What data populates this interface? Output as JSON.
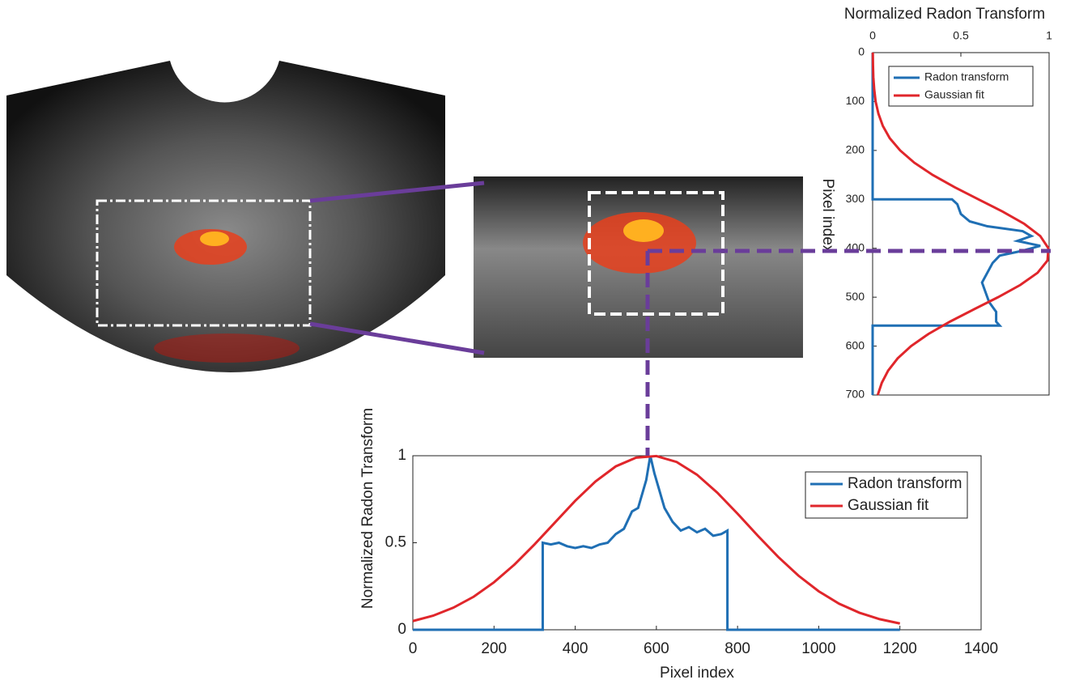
{
  "chart_data": [
    {
      "type": "line",
      "orientation": "vertical",
      "x_label": "Pixel index",
      "y_label": "Normalized Radon Transform",
      "xlim": [
        0,
        700
      ],
      "xticks": [
        0,
        100,
        200,
        300,
        400,
        500,
        600,
        700
      ],
      "ylim": [
        0,
        1
      ],
      "yticks": [
        0,
        0.5,
        1
      ],
      "legend": "northeast",
      "series": [
        {
          "name": "Radon transform",
          "color": "#1f6fb4",
          "x": [
            0,
            300,
            300,
            310,
            330,
            345,
            355,
            365,
            375,
            385,
            395,
            405,
            415,
            430,
            450,
            470,
            490,
            510,
            530,
            550,
            558,
            558,
            700
          ],
          "values": [
            0,
            0,
            0.45,
            0.48,
            0.5,
            0.55,
            0.65,
            0.85,
            0.9,
            0.82,
            0.95,
            0.85,
            0.72,
            0.68,
            0.65,
            0.62,
            0.64,
            0.66,
            0.7,
            0.7,
            0.72,
            0,
            0
          ]
        },
        {
          "name": "Gaussian fit",
          "color": "#e0262b",
          "x": [
            0,
            25,
            50,
            75,
            100,
            125,
            150,
            175,
            200,
            225,
            250,
            275,
            300,
            325,
            350,
            375,
            400,
            425,
            450,
            475,
            500,
            525,
            550,
            575,
            600,
            625,
            650,
            675,
            700
          ],
          "values": [
            0.001,
            0.002,
            0.004,
            0.009,
            0.017,
            0.033,
            0.058,
            0.097,
            0.156,
            0.236,
            0.34,
            0.464,
            0.6,
            0.737,
            0.859,
            0.95,
            0.996,
            0.991,
            0.935,
            0.837,
            0.711,
            0.573,
            0.438,
            0.317,
            0.218,
            0.142,
            0.088,
            0.052,
            0.029
          ]
        }
      ]
    },
    {
      "type": "line",
      "orientation": "horizontal",
      "x_label": "Pixel index",
      "y_label": "Normalized Radon Transform",
      "xlim": [
        0,
        1400
      ],
      "xticks": [
        0,
        200,
        400,
        600,
        800,
        1000,
        1200,
        1400
      ],
      "ylim": [
        0,
        1
      ],
      "yticks": [
        0,
        0.5,
        1
      ],
      "legend": "northeast",
      "series": [
        {
          "name": "Radon transform",
          "color": "#1f6fb4",
          "x": [
            0,
            320,
            320,
            340,
            360,
            380,
            400,
            420,
            440,
            460,
            480,
            500,
            520,
            540,
            555,
            565,
            575,
            585,
            595,
            605,
            620,
            640,
            660,
            680,
            700,
            720,
            740,
            760,
            775,
            775,
            1200
          ],
          "values": [
            0,
            0,
            0.5,
            0.49,
            0.5,
            0.48,
            0.47,
            0.48,
            0.47,
            0.49,
            0.5,
            0.55,
            0.58,
            0.68,
            0.7,
            0.78,
            0.86,
            1.0,
            0.9,
            0.82,
            0.7,
            0.62,
            0.57,
            0.59,
            0.56,
            0.58,
            0.54,
            0.55,
            0.57,
            0,
            0
          ]
        },
        {
          "name": "Gaussian fit",
          "color": "#e0262b",
          "x": [
            0,
            50,
            100,
            150,
            200,
            250,
            300,
            350,
            400,
            450,
            500,
            550,
            600,
            650,
            700,
            750,
            800,
            850,
            900,
            950,
            1000,
            1050,
            1100,
            1150,
            1200
          ],
          "values": [
            0.05,
            0.081,
            0.127,
            0.19,
            0.273,
            0.374,
            0.491,
            0.616,
            0.741,
            0.852,
            0.939,
            0.989,
            0.998,
            0.964,
            0.891,
            0.788,
            0.667,
            0.54,
            0.419,
            0.311,
            0.221,
            0.15,
            0.098,
            0.061,
            0.036
          ]
        }
      ]
    }
  ]
}
